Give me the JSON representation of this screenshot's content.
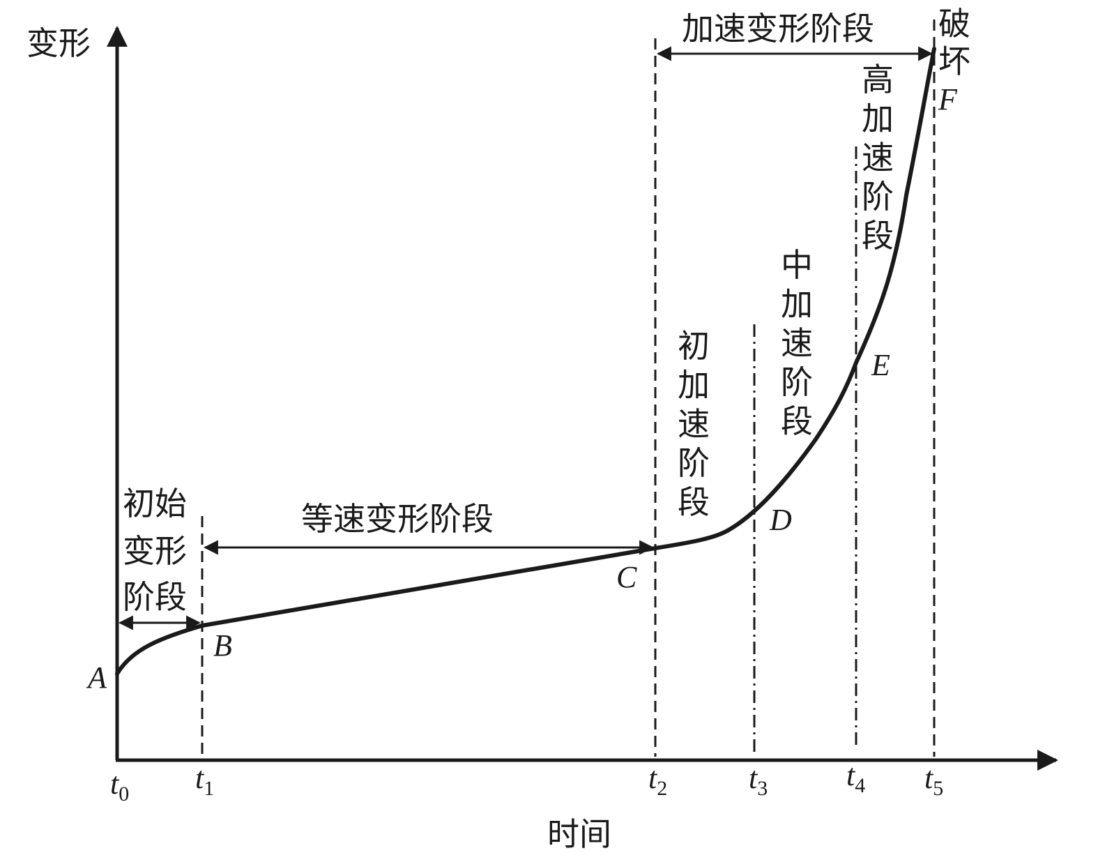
{
  "axes": {
    "y_label": "变形",
    "x_label": "时间",
    "ticks": [
      {
        "sym": "t",
        "sub": "0"
      },
      {
        "sym": "t",
        "sub": "1"
      },
      {
        "sym": "t",
        "sub": "2"
      },
      {
        "sym": "t",
        "sub": "3"
      },
      {
        "sym": "t",
        "sub": "4"
      },
      {
        "sym": "t",
        "sub": "5"
      }
    ]
  },
  "points": {
    "A": "A",
    "B": "B",
    "C": "C",
    "D": "D",
    "E": "E",
    "F": "F"
  },
  "stages": {
    "initial_deformation": [
      "初始",
      "变形",
      "阶段"
    ],
    "constant_velocity": "等速变形阶段",
    "accelerated": "加速变形阶段",
    "initial_acceleration": [
      "初",
      "加",
      "速",
      "阶",
      "段"
    ],
    "medium_acceleration": [
      "中",
      "加",
      "速",
      "阶",
      "段"
    ],
    "high_acceleration": [
      "高",
      "加",
      "速",
      "阶",
      "段"
    ],
    "failure": [
      "破",
      "坏"
    ]
  },
  "colors": {
    "ink": "#1a1a1a"
  }
}
